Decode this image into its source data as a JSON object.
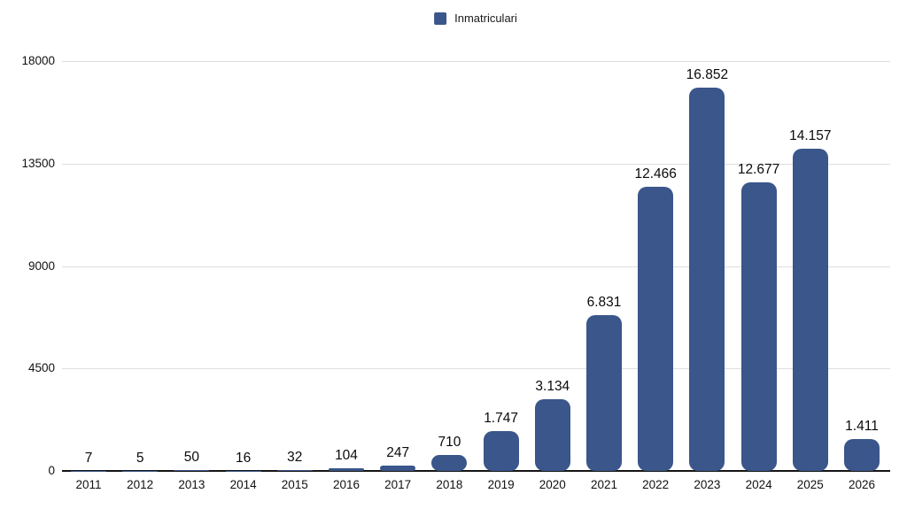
{
  "chart_data": {
    "type": "bar",
    "title": "",
    "legend": "Inmatriculari",
    "legend_position": "top-center",
    "categories": [
      "2011",
      "2012",
      "2013",
      "2014",
      "2015",
      "2016",
      "2017",
      "2018",
      "2019",
      "2020",
      "2021",
      "2022",
      "2023",
      "2024",
      "2025",
      "2026"
    ],
    "values": [
      7,
      5,
      50,
      16,
      32,
      104,
      247,
      710,
      1747,
      3134,
      6831,
      12466,
      16852,
      12677,
      14157,
      1411
    ],
    "value_labels": [
      "7",
      "5",
      "50",
      "16",
      "32",
      "104",
      "247",
      "710",
      "1.747",
      "3.134",
      "6.831",
      "12.466",
      "16.852",
      "12.677",
      "14.157",
      "1.411"
    ],
    "xlabel": "",
    "ylabel": "",
    "ylim": [
      0,
      18000
    ],
    "y_ticks": [
      0,
      4500,
      9000,
      13500,
      18000
    ],
    "y_tick_labels": [
      "0",
      "4500",
      "9000",
      "13500",
      "18000"
    ],
    "grid": "horizontal",
    "bar_color": "#3A568A",
    "grid_color": "#DEDEDE",
    "axis_color": "#141414",
    "label_color": "#0a0a0a"
  }
}
